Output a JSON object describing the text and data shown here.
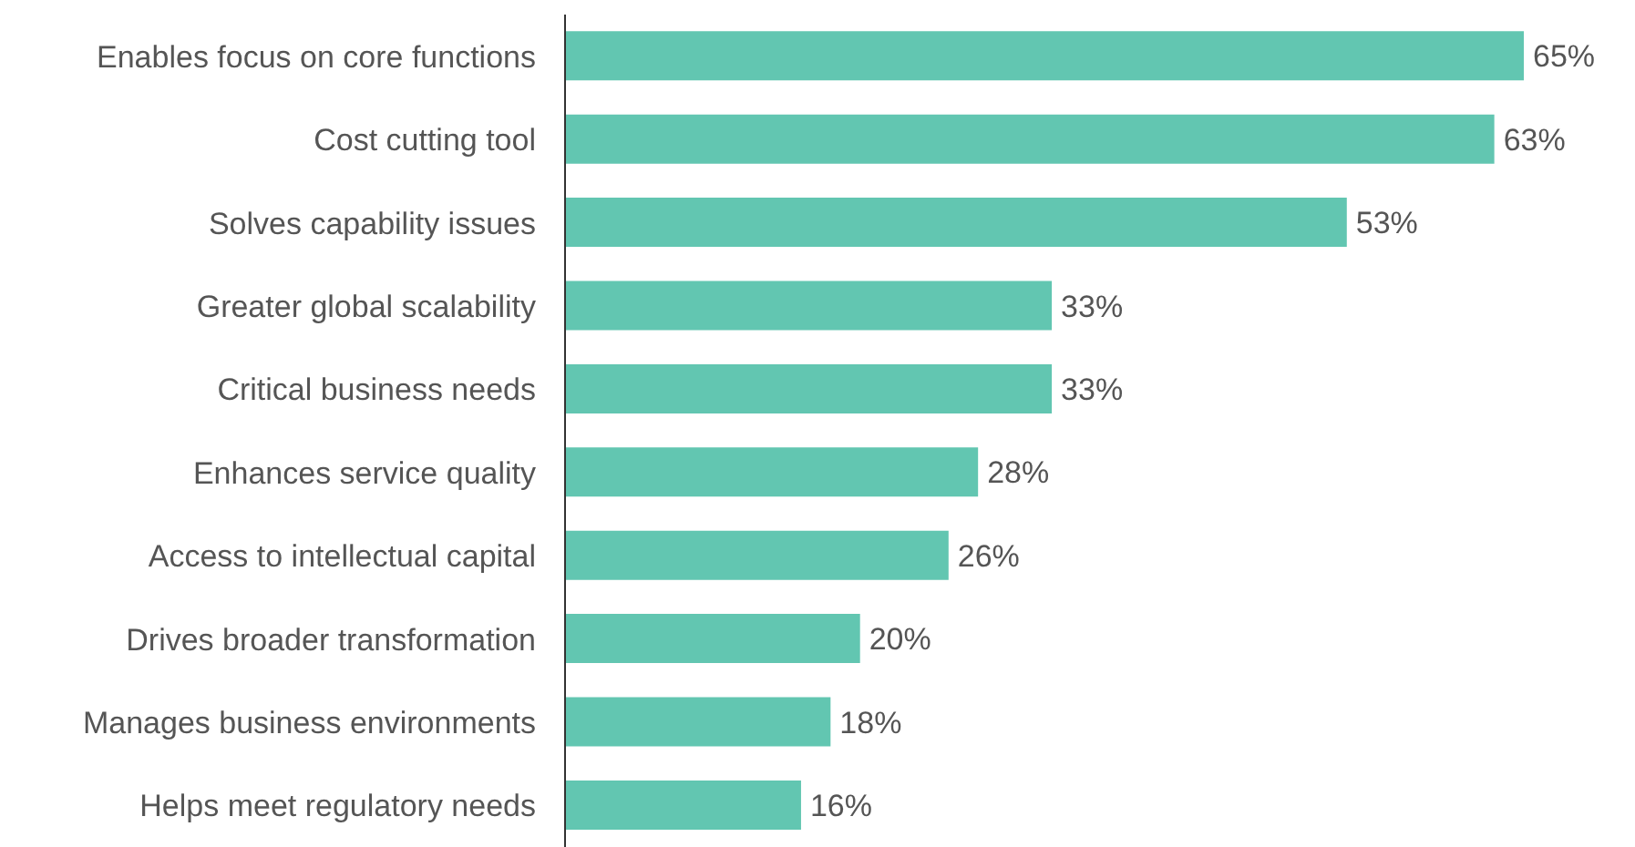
{
  "chart_data": {
    "type": "bar",
    "orientation": "horizontal",
    "tick_labels": "y",
    "categories": [
      "Enables focus on core functions",
      "Cost cutting tool",
      "Solves capability issues",
      "Greater global scalability",
      "Critical business needs",
      "Enhances service quality",
      "Access to intellectual capital",
      "Drives broader transformation",
      "Manages business environments",
      "Helps meet regulatory needs"
    ],
    "values": [
      65,
      63,
      53,
      33,
      33,
      28,
      26,
      20,
      18,
      16
    ],
    "value_labels": [
      "65%",
      "63%",
      "53%",
      "33%",
      "33%",
      "28%",
      "26%",
      "20%",
      "18%",
      "16%"
    ],
    "color": "#62c6b1"
  }
}
